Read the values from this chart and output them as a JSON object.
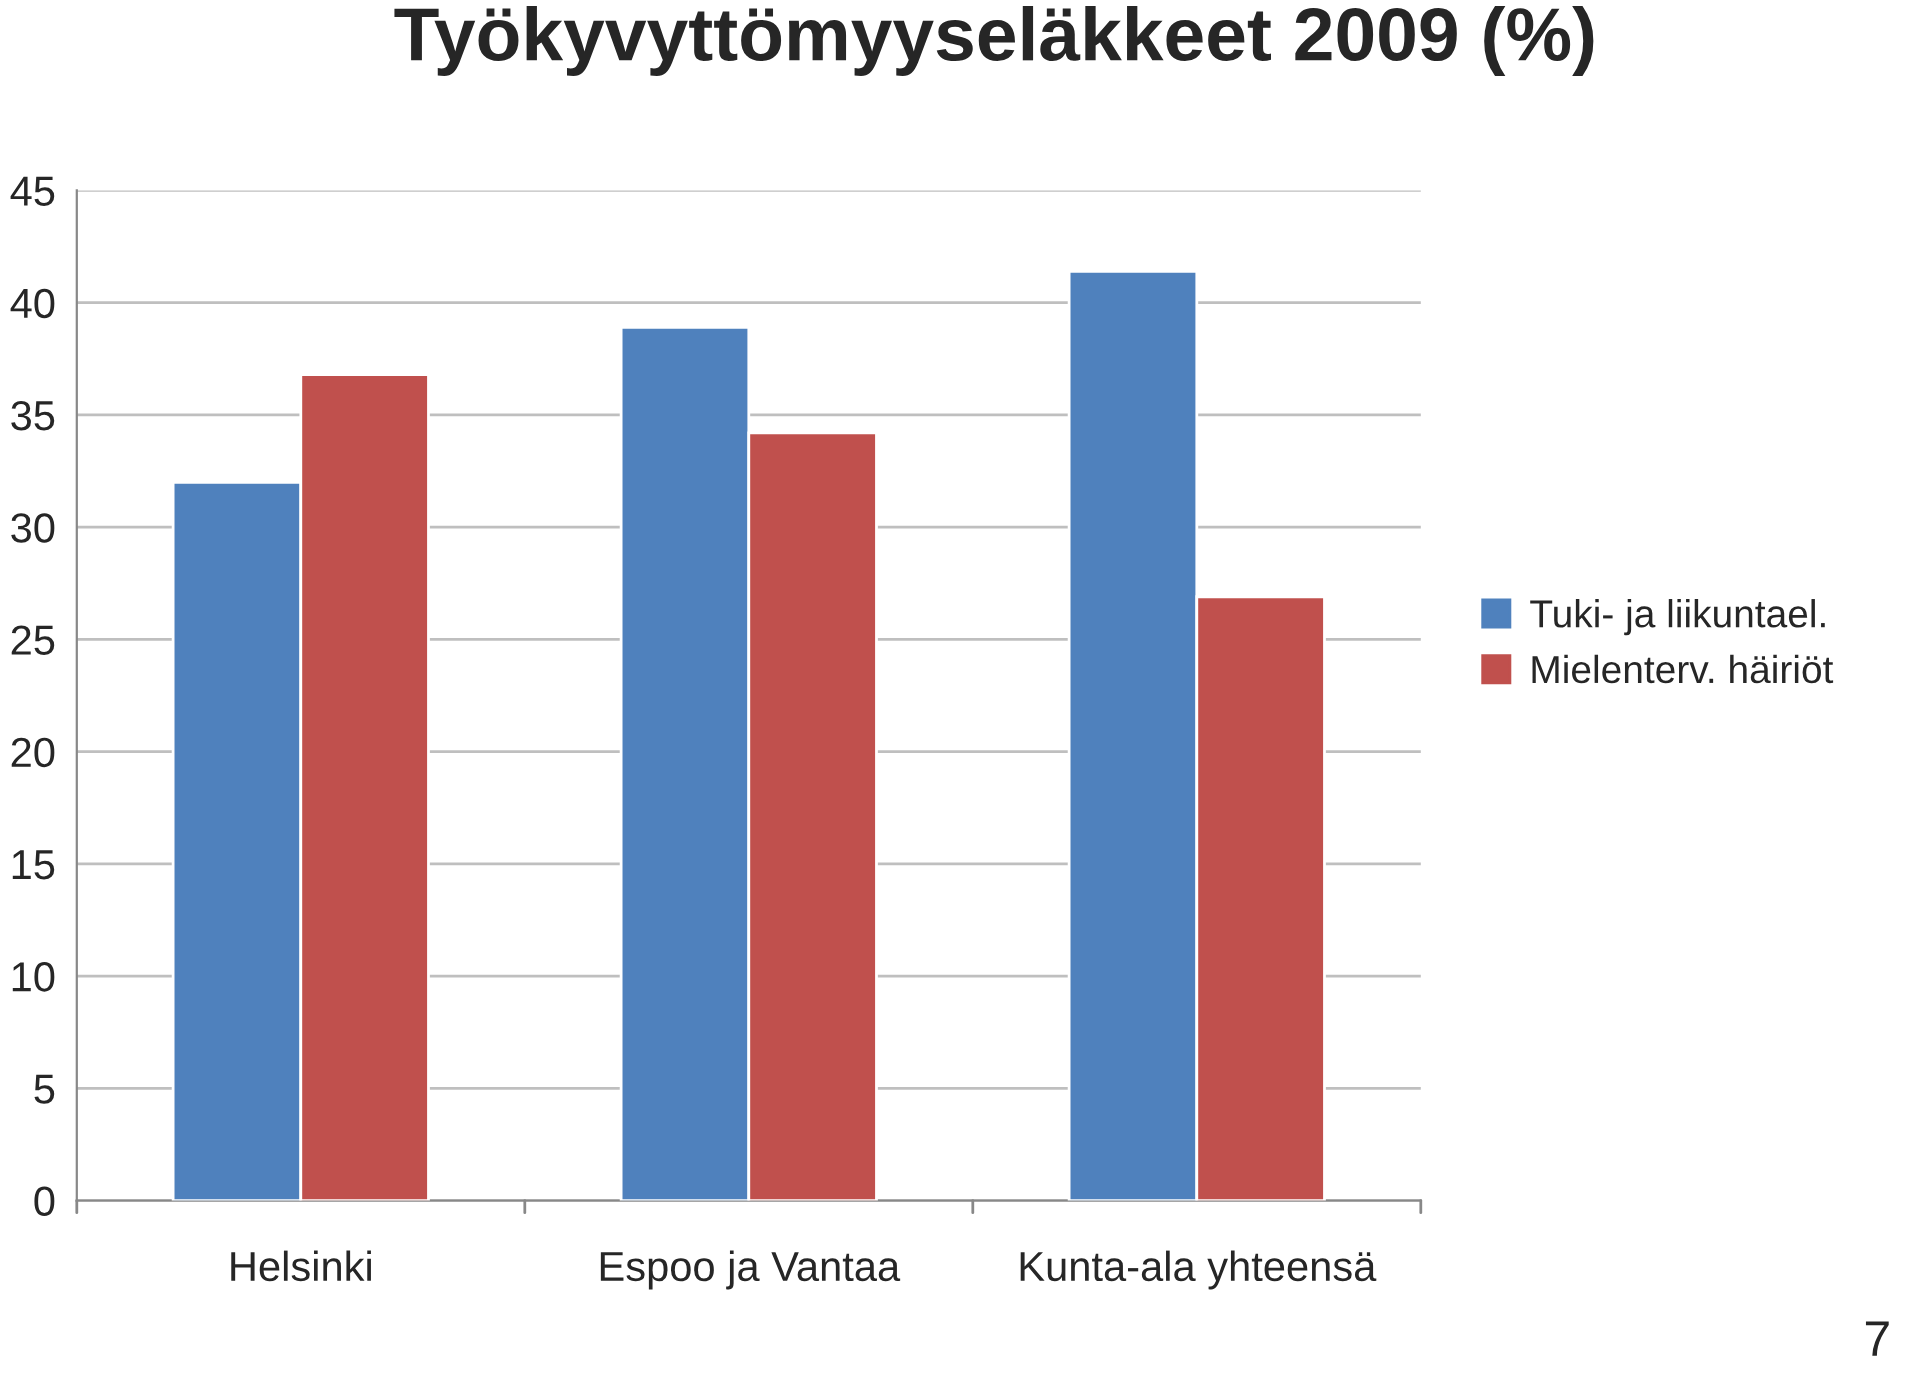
{
  "chart_data": {
    "type": "bar",
    "title": "Työkyvyttömyyseläkkeet 2009 (%)",
    "categories": [
      "Helsinki",
      "Espoo ja Vantaa",
      "Kunta-ala yhteensä"
    ],
    "series": [
      {
        "name": "Tuki- ja liikuntael.",
        "color": "#4f81bd",
        "values": [
          32.0,
          38.9,
          41.4
        ]
      },
      {
        "name": "Mielenterv. häiriöt",
        "color": "#c0504d",
        "values": [
          36.8,
          34.2,
          26.9
        ]
      }
    ],
    "ylim": [
      0,
      45
    ],
    "yticks": [
      0,
      5,
      10,
      15,
      20,
      25,
      30,
      35,
      40,
      45
    ],
    "grid": "y",
    "legend": "right",
    "annotations": [
      "7"
    ]
  }
}
